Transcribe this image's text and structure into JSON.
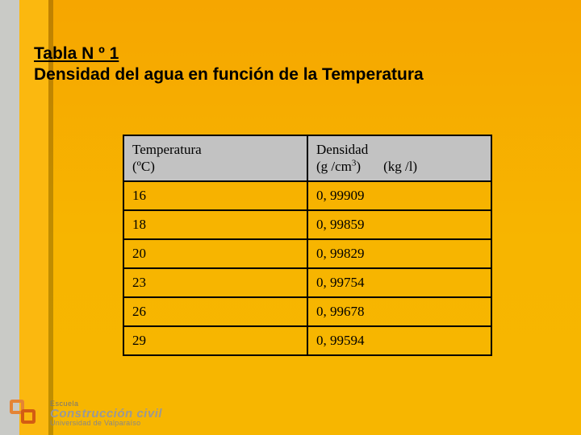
{
  "title": {
    "line1": "Tabla N º  1",
    "line2": "Densidad del agua en función de la Temperatura"
  },
  "table": {
    "type": "table",
    "header_bg": "#c2c2c2",
    "border_color": "#000000",
    "font_family": "Times New Roman",
    "font_size_pt": 13,
    "columns": [
      {
        "label_line1": "Temperatura",
        "label_line2": "(ºC)",
        "width_pct": 50
      },
      {
        "label_line1": "Densidad",
        "label_line2_a": "(g /cm3)",
        "label_line2_b": "(kg /l)",
        "width_pct": 50
      }
    ],
    "rows": [
      [
        "16",
        "0, 99909"
      ],
      [
        "18",
        "0, 99859"
      ],
      [
        "20",
        "0, 99829"
      ],
      [
        "23",
        "0, 99754"
      ],
      [
        "26",
        "0, 99678"
      ],
      [
        "29",
        "0, 99594"
      ]
    ]
  },
  "background": {
    "left_strip_color": "#c9cac6",
    "mid_strip_color": "#fbb80f",
    "main_color_top": "#f6a600",
    "main_color_bottom": "#f7b600",
    "shadow_edge_color": "rgba(0,0,0,0.22)"
  },
  "logo": {
    "line1": "Escuela",
    "line2": "Construcción civil",
    "line3": "Universidad de Valparaíso",
    "mark_color_a": "#e48435",
    "mark_color_b": "#d35c13"
  }
}
